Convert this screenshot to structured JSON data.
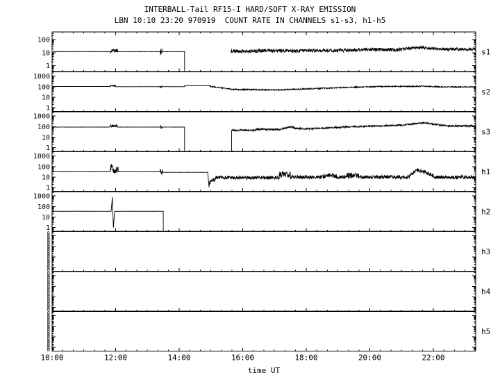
{
  "header": {
    "title": "INTERBALL-Tail RF15-I HARD/SOFT X-RAY EMISSION",
    "subtitle": "LBN 10:10 23:20 970919  COUNT RATE IN CHANNELS s1-s3, h1-h5"
  },
  "axes": {
    "xlabel": "time UT",
    "x_tick_labels": [
      "10:00",
      "12:00",
      "14:00",
      "16:00",
      "18:00",
      "20:00",
      "22:00"
    ]
  },
  "colors": {
    "trace": "#000000",
    "frame": "#000000",
    "background": "#ffffff",
    "text": "#000000"
  },
  "chart_data": {
    "type": "line",
    "title": "INTERBALL-Tail RF15-I HARD/SOFT X-RAY EMISSION",
    "subtitle": "LBN 10:10 23:20 970919  COUNT RATE IN CHANNELS s1-s3, h1-h5",
    "xlabel": "time UT",
    "y_scale": "log",
    "x_range_hours": [
      10.0,
      23.333
    ],
    "x_tick_hours": [
      10,
      12,
      14,
      16,
      18,
      20,
      22
    ],
    "x_tick_labels": [
      "10:00",
      "12:00",
      "14:00",
      "16:00",
      "18:00",
      "20:00",
      "22:00"
    ],
    "x_minor_step_hours": 0.3333,
    "panels": [
      {
        "label": "s1",
        "y_tick_values": [
          100,
          10,
          1
        ],
        "y_tick_labels": [
          "100",
          "10",
          "1"
        ],
        "log_min": 0.35,
        "log_max": 400,
        "no_data": false,
        "paths": [
          {
            "end_drop": true,
            "segments": [
              {
                "t0": 10.02,
                "t1": 11.83,
                "v": 12,
                "noise": 0.012
              },
              {
                "t0": 11.83,
                "t1": 12.06,
                "v": 14,
                "noise": 0.16
              },
              {
                "t0": 12.06,
                "t1": 13.4,
                "v": 12,
                "noise": 0.012
              },
              {
                "t0": 13.4,
                "t1": 13.46,
                "v": 13,
                "noise": 0.28
              },
              {
                "t0": 13.46,
                "t1": 14.17,
                "v": 12,
                "noise": 0.012
              }
            ]
          },
          {
            "segments": [
              {
                "t0": 15.63,
                "t1": 16.2,
                "v": 13,
                "noise": 0.13
              },
              {
                "t0": 16.2,
                "t1": 18.0,
                "v": 14,
                "noise": 0.14
              },
              {
                "t0": 18.0,
                "t1": 19.5,
                "v": 15,
                "noise": 0.13
              },
              {
                "t0": 19.5,
                "t1": 21.0,
                "v": 17,
                "noise": 0.13
              },
              {
                "t0": 21.0,
                "t1": 21.7,
                "v0": 20,
                "v1": 26,
                "noise": 0.11
              },
              {
                "t0": 21.7,
                "t1": 22.3,
                "v0": 24,
                "v1": 19,
                "noise": 0.12
              },
              {
                "t0": 22.3,
                "t1": 23.33,
                "v": 19,
                "noise": 0.12
              }
            ]
          }
        ]
      },
      {
        "label": "s2",
        "y_tick_values": [
          1000,
          100,
          10,
          1
        ],
        "y_tick_labels": [
          "1000",
          "100",
          "10",
          "1"
        ],
        "log_min": 0.45,
        "log_max": 2500,
        "no_data": false,
        "paths": [
          {
            "segments": [
              {
                "t0": 10.02,
                "t1": 11.83,
                "v": 105,
                "noise": 0.008
              },
              {
                "t0": 11.83,
                "t1": 12.0,
                "v": 120,
                "noise": 0.05
              },
              {
                "t0": 12.0,
                "t1": 13.4,
                "v": 100,
                "noise": 0.008
              },
              {
                "t0": 13.4,
                "t1": 13.46,
                "v": 95,
                "noise": 0.12
              },
              {
                "t0": 13.46,
                "t1": 14.17,
                "v": 100,
                "noise": 0.008
              },
              {
                "t0": 14.17,
                "t1": 14.95,
                "v": 125,
                "noise": 0.01
              },
              {
                "t0": 14.95,
                "t1": 15.6,
                "v0": 110,
                "v1": 60,
                "noise": 0.05
              },
              {
                "t0": 15.6,
                "t1": 17.3,
                "v0": 55,
                "v1": 48,
                "noise": 0.06
              },
              {
                "t0": 17.3,
                "t1": 18.8,
                "v0": 52,
                "v1": 75,
                "noise": 0.06
              },
              {
                "t0": 18.8,
                "t1": 20.2,
                "v0": 78,
                "v1": 100,
                "noise": 0.05
              },
              {
                "t0": 20.2,
                "t1": 21.6,
                "v": 105,
                "noise": 0.05
              },
              {
                "t0": 21.6,
                "t1": 22.2,
                "v0": 115,
                "v1": 95,
                "noise": 0.05
              },
              {
                "t0": 22.2,
                "t1": 23.33,
                "v": 95,
                "noise": 0.05
              }
            ]
          }
        ]
      },
      {
        "label": "s3",
        "y_tick_values": [
          1000,
          100,
          10,
          1
        ],
        "y_tick_labels": [
          "1000",
          "100",
          "10",
          "1"
        ],
        "log_min": 0.45,
        "log_max": 2500,
        "no_data": false,
        "paths": [
          {
            "end_drop": true,
            "segments": [
              {
                "t0": 10.02,
                "t1": 11.83,
                "v": 90,
                "noise": 0.01
              },
              {
                "t0": 11.83,
                "t1": 12.05,
                "v": 115,
                "noise": 0.12
              },
              {
                "t0": 12.05,
                "t1": 13.4,
                "v": 90,
                "noise": 0.01
              },
              {
                "t0": 13.4,
                "t1": 13.46,
                "v": 85,
                "noise": 0.18
              },
              {
                "t0": 13.46,
                "t1": 14.17,
                "v": 90,
                "noise": 0.01
              }
            ]
          },
          {
            "start_drop": true,
            "segments": [
              {
                "t0": 15.65,
                "t1": 16.4,
                "v": 45,
                "noise": 0.08
              },
              {
                "t0": 16.4,
                "t1": 17.25,
                "v": 55,
                "noise": 0.09
              },
              {
                "t0": 17.25,
                "t1": 17.6,
                "v0": 70,
                "v1": 95,
                "noise": 0.09
              },
              {
                "t0": 17.6,
                "t1": 18.2,
                "v0": 70,
                "v1": 60,
                "noise": 0.09
              },
              {
                "t0": 18.2,
                "t1": 19.4,
                "v0": 65,
                "v1": 95,
                "noise": 0.08
              },
              {
                "t0": 19.4,
                "t1": 21.1,
                "v0": 95,
                "v1": 140,
                "noise": 0.07
              },
              {
                "t0": 21.1,
                "t1": 21.75,
                "v0": 150,
                "v1": 240,
                "noise": 0.07
              },
              {
                "t0": 21.75,
                "t1": 22.4,
                "v0": 220,
                "v1": 120,
                "noise": 0.08
              },
              {
                "t0": 22.4,
                "t1": 23.33,
                "v": 115,
                "noise": 0.08
              }
            ]
          }
        ]
      },
      {
        "label": "h1",
        "y_tick_values": [
          1000,
          100,
          10,
          1
        ],
        "y_tick_labels": [
          "1000",
          "100",
          "10",
          "1"
        ],
        "log_min": 0.45,
        "log_max": 2500,
        "no_data": false,
        "paths": [
          {
            "segments": [
              {
                "t0": 10.02,
                "t1": 11.83,
                "v": 35,
                "noise": 0.012
              },
              {
                "t0": 11.83,
                "t1": 11.92,
                "v": 90,
                "noise": 0.4
              },
              {
                "t0": 11.92,
                "t1": 12.08,
                "v": 45,
                "noise": 0.3
              },
              {
                "t0": 12.08,
                "t1": 13.4,
                "v": 35,
                "noise": 0.012
              },
              {
                "t0": 13.4,
                "t1": 13.47,
                "v": 30,
                "noise": 0.3
              },
              {
                "t0": 13.47,
                "t1": 14.9,
                "v": 28,
                "noise": 0.012
              },
              {
                "t0": 14.9,
                "t1": 14.94,
                "v0": 28,
                "v1": 1.2,
                "noise": 0.05
              },
              {
                "t0": 14.94,
                "t1": 15.15,
                "v0": 3,
                "v1": 7,
                "noise": 0.2
              },
              {
                "t0": 15.15,
                "t1": 17.15,
                "v": 9,
                "noise": 0.17
              },
              {
                "t0": 17.15,
                "t1": 17.5,
                "v": 18,
                "noise": 0.3
              },
              {
                "t0": 17.5,
                "t1": 18.55,
                "v": 10,
                "noise": 0.17
              },
              {
                "t0": 18.55,
                "t1": 18.95,
                "v": 14,
                "noise": 0.22
              },
              {
                "t0": 18.95,
                "t1": 19.25,
                "v": 10,
                "noise": 0.17
              },
              {
                "t0": 19.25,
                "t1": 19.65,
                "v": 14,
                "noise": 0.26
              },
              {
                "t0": 19.65,
                "t1": 21.25,
                "v": 10,
                "noise": 0.17
              },
              {
                "t0": 21.25,
                "t1": 21.55,
                "v0": 18,
                "v1": 48,
                "noise": 0.18
              },
              {
                "t0": 21.55,
                "t1": 22.0,
                "v0": 45,
                "v1": 14,
                "noise": 0.2
              },
              {
                "t0": 22.0,
                "t1": 23.33,
                "v": 10,
                "noise": 0.17
              }
            ]
          }
        ]
      },
      {
        "label": "h2",
        "y_tick_values": [
          1000,
          100,
          10,
          1
        ],
        "y_tick_labels": [
          "1000",
          "100",
          "10",
          "1"
        ],
        "log_min": 0.45,
        "log_max": 2500,
        "no_data": false,
        "paths": [
          {
            "end_drop": true,
            "segments": [
              {
                "t0": 10.02,
                "t1": 11.86,
                "v": 35,
                "noise": 0.008
              },
              {
                "t0": 11.86,
                "t1": 11.895,
                "v0": 35,
                "v1": 750,
                "noise": 0.03
              },
              {
                "t0": 11.895,
                "t1": 11.93,
                "v0": 750,
                "v1": 1.0,
                "noise": 0.03
              },
              {
                "t0": 11.93,
                "t1": 11.97,
                "v0": 1.0,
                "v1": 35,
                "noise": 0.03
              },
              {
                "t0": 11.97,
                "t1": 13.5,
                "v": 35,
                "noise": 0.008
              }
            ]
          }
        ]
      },
      {
        "label": "h3",
        "y_tick_values": [],
        "y_tick_labels": [],
        "zero_label_count": 17,
        "log_min": 0.45,
        "log_max": 2500,
        "no_data": true,
        "paths": []
      },
      {
        "label": "h4",
        "y_tick_values": [],
        "y_tick_labels": [],
        "zero_label_count": 17,
        "log_min": 0.45,
        "log_max": 2500,
        "no_data": true,
        "paths": []
      },
      {
        "label": "h5",
        "y_tick_values": [],
        "y_tick_labels": [],
        "zero_label_count": 17,
        "log_min": 0.45,
        "log_max": 2500,
        "no_data": true,
        "paths": []
      }
    ]
  }
}
